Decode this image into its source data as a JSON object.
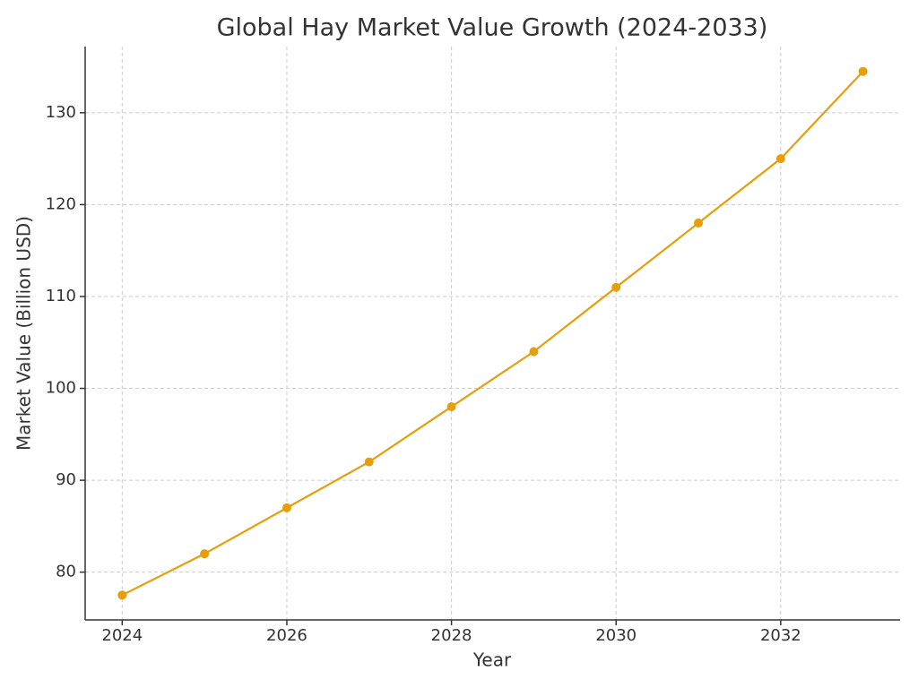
{
  "chart_data": {
    "type": "line",
    "title": "Global Hay Market Value Growth (2024-2033)",
    "x_label": "Year",
    "y_label": "Market Value (Billion USD)",
    "x": [
      2024,
      2025,
      2026,
      2027,
      2028,
      2029,
      2030,
      2031,
      2032,
      2033
    ],
    "series": [
      {
        "name": "Market Value",
        "color": "#e69f0a",
        "values": [
          77.5,
          82,
          87,
          92,
          98,
          104,
          111,
          118,
          125,
          134.5
        ]
      }
    ],
    "xlim": [
      2023.55,
      2033.45
    ],
    "ylim": [
      74.8,
      137.2
    ],
    "xticks": [
      2024,
      2026,
      2028,
      2030,
      2032
    ],
    "yticks": [
      80,
      90,
      100,
      110,
      120,
      130
    ],
    "grid": true
  }
}
